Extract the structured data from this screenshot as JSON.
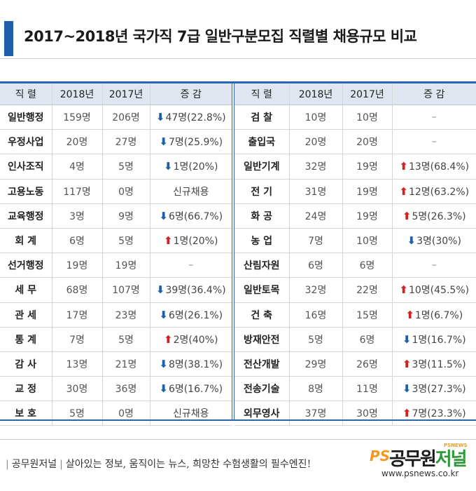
{
  "title": "2017~2018년 국가직 7급 일반구분모집 직렬별 채용규모 비교",
  "headers": {
    "job": "직 렬",
    "y2018": "2018년",
    "y2017": "2017년",
    "change": "증 감"
  },
  "left_rows": [
    {
      "job": "일반행정",
      "y2018": "159명",
      "y2017": "206명",
      "dir": "down",
      "change": "47명(22.8%)"
    },
    {
      "job": "우정사업",
      "y2018": "20명",
      "y2017": "27명",
      "dir": "down",
      "change": "7명(25.9%)"
    },
    {
      "job": "인사조직",
      "y2018": "4명",
      "y2017": "5명",
      "dir": "down",
      "change": "1명(20%)"
    },
    {
      "job": "고용노동",
      "y2018": "117명",
      "y2017": "0명",
      "dir": "none",
      "change": "신규채용"
    },
    {
      "job": "교육행정",
      "y2018": "3명",
      "y2017": "9명",
      "dir": "down",
      "change": "6명(66.7%)"
    },
    {
      "job": "회 계",
      "y2018": "6명",
      "y2017": "5명",
      "dir": "up",
      "change": "1명(20%)"
    },
    {
      "job": "선거행정",
      "y2018": "19명",
      "y2017": "19명",
      "dir": "none",
      "change": "–"
    },
    {
      "job": "세 무",
      "y2018": "68명",
      "y2017": "107명",
      "dir": "down",
      "change": "39명(36.4%)"
    },
    {
      "job": "관 세",
      "y2018": "17명",
      "y2017": "23명",
      "dir": "down",
      "change": "6명(26.1%)"
    },
    {
      "job": "통 계",
      "y2018": "7명",
      "y2017": "5명",
      "dir": "up",
      "change": "2명(40%)"
    },
    {
      "job": "감 사",
      "y2018": "13명",
      "y2017": "21명",
      "dir": "down",
      "change": "8명(38.1%)"
    },
    {
      "job": "교 정",
      "y2018": "30명",
      "y2017": "36명",
      "dir": "down",
      "change": "6명(16.7%)"
    },
    {
      "job": "보 호",
      "y2018": "5명",
      "y2017": "0명",
      "dir": "none",
      "change": "신규채용"
    }
  ],
  "right_rows": [
    {
      "job": "검 찰",
      "y2018": "10명",
      "y2017": "10명",
      "dir": "none",
      "change": "–"
    },
    {
      "job": "출입국",
      "y2018": "20명",
      "y2017": "20명",
      "dir": "none",
      "change": "–"
    },
    {
      "job": "일반기계",
      "y2018": "32명",
      "y2017": "19명",
      "dir": "up",
      "change": "13명(68.4%)"
    },
    {
      "job": "전 기",
      "y2018": "31명",
      "y2017": "19명",
      "dir": "up",
      "change": "12명(63.2%)"
    },
    {
      "job": "화 공",
      "y2018": "24명",
      "y2017": "19명",
      "dir": "up",
      "change": "5명(26.3%)"
    },
    {
      "job": "농 업",
      "y2018": "7명",
      "y2017": "10명",
      "dir": "down",
      "change": "3명(30%)"
    },
    {
      "job": "산림자원",
      "y2018": "6명",
      "y2017": "6명",
      "dir": "none",
      "change": "–"
    },
    {
      "job": "일반토목",
      "y2018": "32명",
      "y2017": "22명",
      "dir": "up",
      "change": "10명(45.5%)"
    },
    {
      "job": "건 축",
      "y2018": "16명",
      "y2017": "15명",
      "dir": "up",
      "change": "1명(6.7%)"
    },
    {
      "job": "방재안전",
      "y2018": "5명",
      "y2017": "6명",
      "dir": "down",
      "change": "1명(16.7%)"
    },
    {
      "job": "전산개발",
      "y2018": "29명",
      "y2017": "26명",
      "dir": "up",
      "change": "3명(11.5%)"
    },
    {
      "job": "전송기술",
      "y2018": "8명",
      "y2017": "11명",
      "dir": "down",
      "change": "3명(27.3%)"
    },
    {
      "job": "외무영사",
      "y2018": "37명",
      "y2017": "30명",
      "dir": "up",
      "change": "7명(23.3%)"
    }
  ],
  "colors": {
    "accent": "#1f5fa8",
    "up": "#d62020",
    "down": "#1f5fa8",
    "header_bg": "#dfe6ef"
  },
  "icons": {
    "up": "up-arrow-icon",
    "down": "down-arrow-icon"
  },
  "footer": {
    "brand": "공무원저널",
    "slogan": "살아있는 정보, 움직이는 뉴스, 희망찬 수험생활의 필수엔진!"
  },
  "logo": {
    "ps": "PS",
    "name_a": "공무원",
    "name_b": "저널",
    "tag": "PSNEWS",
    "url": "www.psnews.co.kr"
  }
}
